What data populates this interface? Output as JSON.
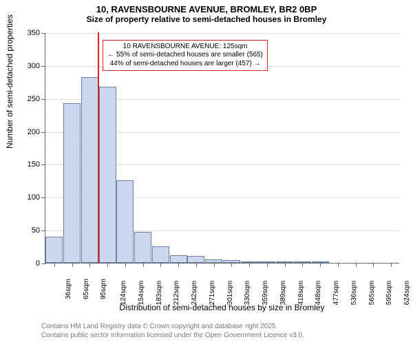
{
  "chart": {
    "type": "histogram",
    "title_main": "10, RAVENSBOURNE AVENUE, BROMLEY, BR2 0BP",
    "title_sub": "Size of property relative to semi-detached houses in Bromley",
    "y_axis_title": "Number of semi-detached properties",
    "x_axis_title": "Distribution of semi-detached houses by size in Bromley",
    "ylim": [
      0,
      350
    ],
    "ytick_step": 50,
    "yticks": [
      0,
      50,
      100,
      150,
      200,
      250,
      300,
      350
    ],
    "x_categories": [
      "36sqm",
      "65sqm",
      "95sqm",
      "124sqm",
      "154sqm",
      "183sqm",
      "212sqm",
      "242sqm",
      "271sqm",
      "301sqm",
      "330sqm",
      "359sqm",
      "389sqm",
      "418sqm",
      "448sqm",
      "477sqm",
      "536sqm",
      "565sqm",
      "595sqm",
      "624sqm"
    ],
    "values": [
      40,
      242,
      282,
      267,
      125,
      47,
      25,
      12,
      10,
      5,
      4,
      2,
      2,
      1,
      1,
      1,
      0,
      0,
      0,
      0
    ],
    "bar_color": "#cdd8ee",
    "bar_border_color": "#6a7fa8",
    "background_color": "#ffffff",
    "grid_color": "#dddddd",
    "marker": {
      "position_index": 3,
      "color": "#dd2222",
      "label_line1": "10 RAVENSBOURNE AVENUE: 125sqm",
      "label_line2": "← 55% of semi-detached houses are smaller (565)",
      "label_line3": "44% of semi-detached houses are larger (457) →"
    },
    "title_fontsize": 13,
    "subtitle_fontsize": 12,
    "label_fontsize": 11,
    "tick_fontsize": 10
  },
  "footer": {
    "line1": "Contains HM Land Registry data © Crown copyright and database right 2025.",
    "line2": "Contains public sector information licensed under the Open Government Licence v3.0."
  }
}
